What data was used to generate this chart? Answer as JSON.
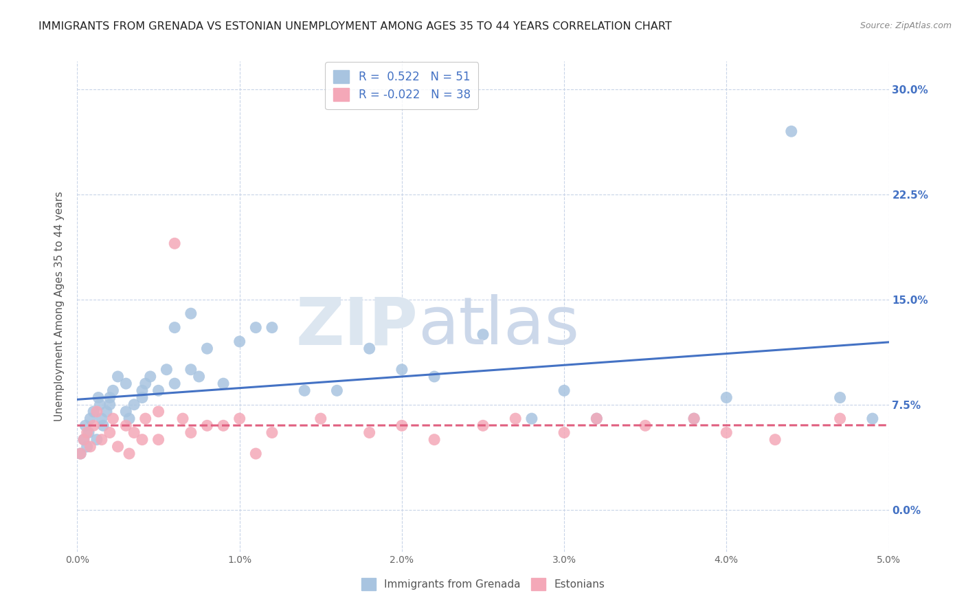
{
  "title": "IMMIGRANTS FROM GRENADA VS ESTONIAN UNEMPLOYMENT AMONG AGES 35 TO 44 YEARS CORRELATION CHART",
  "source": "Source: ZipAtlas.com",
  "ylabel": "Unemployment Among Ages 35 to 44 years",
  "series1_name": "Immigrants from Grenada",
  "series2_name": "Estonians",
  "series1_color": "#a8c4e0",
  "series2_color": "#f4a8b8",
  "series1_line_color": "#4472c4",
  "series2_line_color": "#e06080",
  "R1": 0.522,
  "N1": 51,
  "R2": -0.022,
  "N2": 38,
  "xlim": [
    0.0,
    0.05
  ],
  "ylim": [
    -0.03,
    0.32
  ],
  "yticks": [
    0.0,
    0.075,
    0.15,
    0.225,
    0.3
  ],
  "ytick_labels": [
    "0.0%",
    "7.5%",
    "15.0%",
    "22.5%",
    "30.0%"
  ],
  "xticks": [
    0.0,
    0.01,
    0.02,
    0.03,
    0.04,
    0.05
  ],
  "xtick_labels": [
    "0.0%",
    "1.0%",
    "2.0%",
    "3.0%",
    "4.0%",
    "5.0%"
  ],
  "series1_x": [
    0.0002,
    0.0004,
    0.0005,
    0.0006,
    0.0007,
    0.0008,
    0.001,
    0.0012,
    0.0013,
    0.0014,
    0.0015,
    0.0016,
    0.0018,
    0.002,
    0.002,
    0.0022,
    0.0025,
    0.003,
    0.003,
    0.0032,
    0.0035,
    0.004,
    0.004,
    0.0042,
    0.0045,
    0.005,
    0.0055,
    0.006,
    0.006,
    0.007,
    0.007,
    0.0075,
    0.008,
    0.009,
    0.01,
    0.011,
    0.012,
    0.014,
    0.016,
    0.018,
    0.02,
    0.022,
    0.025,
    0.028,
    0.03,
    0.032,
    0.038,
    0.04,
    0.044,
    0.047,
    0.049
  ],
  "series1_y": [
    0.04,
    0.05,
    0.06,
    0.045,
    0.055,
    0.065,
    0.07,
    0.05,
    0.08,
    0.075,
    0.065,
    0.06,
    0.07,
    0.075,
    0.08,
    0.085,
    0.095,
    0.07,
    0.09,
    0.065,
    0.075,
    0.08,
    0.085,
    0.09,
    0.095,
    0.085,
    0.1,
    0.09,
    0.13,
    0.1,
    0.14,
    0.095,
    0.115,
    0.09,
    0.12,
    0.13,
    0.13,
    0.085,
    0.085,
    0.115,
    0.1,
    0.095,
    0.125,
    0.065,
    0.085,
    0.065,
    0.065,
    0.08,
    0.27,
    0.08,
    0.065
  ],
  "series2_x": [
    0.0002,
    0.0004,
    0.0006,
    0.0008,
    0.001,
    0.0012,
    0.0015,
    0.002,
    0.0022,
    0.0025,
    0.003,
    0.0032,
    0.0035,
    0.004,
    0.0042,
    0.005,
    0.005,
    0.006,
    0.0065,
    0.007,
    0.008,
    0.009,
    0.01,
    0.011,
    0.012,
    0.015,
    0.018,
    0.02,
    0.022,
    0.025,
    0.027,
    0.03,
    0.032,
    0.035,
    0.038,
    0.04,
    0.043,
    0.047
  ],
  "series2_y": [
    0.04,
    0.05,
    0.055,
    0.045,
    0.06,
    0.07,
    0.05,
    0.055,
    0.065,
    0.045,
    0.06,
    0.04,
    0.055,
    0.05,
    0.065,
    0.07,
    0.05,
    0.19,
    0.065,
    0.055,
    0.06,
    0.06,
    0.065,
    0.04,
    0.055,
    0.065,
    0.055,
    0.06,
    0.05,
    0.06,
    0.065,
    0.055,
    0.065,
    0.06,
    0.065,
    0.055,
    0.05,
    0.065
  ],
  "background_color": "#ffffff",
  "grid_color": "#c8d4e8",
  "title_fontsize": 11.5,
  "label_fontsize": 11,
  "tick_fontsize": 10,
  "right_tick_color": "#4472c4"
}
